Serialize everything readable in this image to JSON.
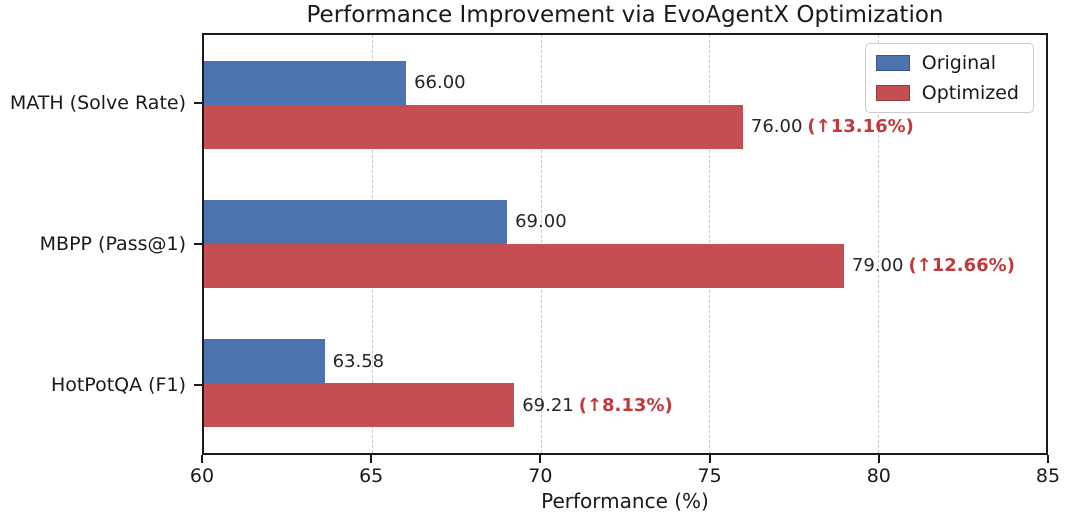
{
  "chart_data": {
    "type": "bar",
    "orientation": "horizontal",
    "title": "Performance Improvement via EvoAgentX Optimization",
    "xlabel": "Performance (%)",
    "ylabel": "",
    "categories": [
      "MATH (Solve Rate)",
      "MBPP (Pass@1)",
      "HotPotQA (F1)"
    ],
    "series": [
      {
        "name": "Original",
        "color": "#4C72B0",
        "values": [
          66.0,
          69.0,
          63.58
        ],
        "labels": [
          "66.00",
          "69.00",
          "63.58"
        ]
      },
      {
        "name": "Optimized",
        "color": "#C44E52",
        "values": [
          76.0,
          79.0,
          69.21
        ],
        "labels": [
          "76.00",
          "79.00",
          "69.21"
        ],
        "annotations": [
          "(↑13.16%)",
          "(↑12.66%)",
          "(↑8.13%)"
        ]
      }
    ],
    "xlim": [
      60,
      85
    ],
    "xticks": [
      60,
      65,
      70,
      75,
      80,
      85
    ],
    "grid": true,
    "gridline_style": "dashed",
    "legend_position": "upper right",
    "annotation_color": "#C03A3C",
    "value_label_color": "#262626",
    "axis_color": "#1a1a1a"
  }
}
